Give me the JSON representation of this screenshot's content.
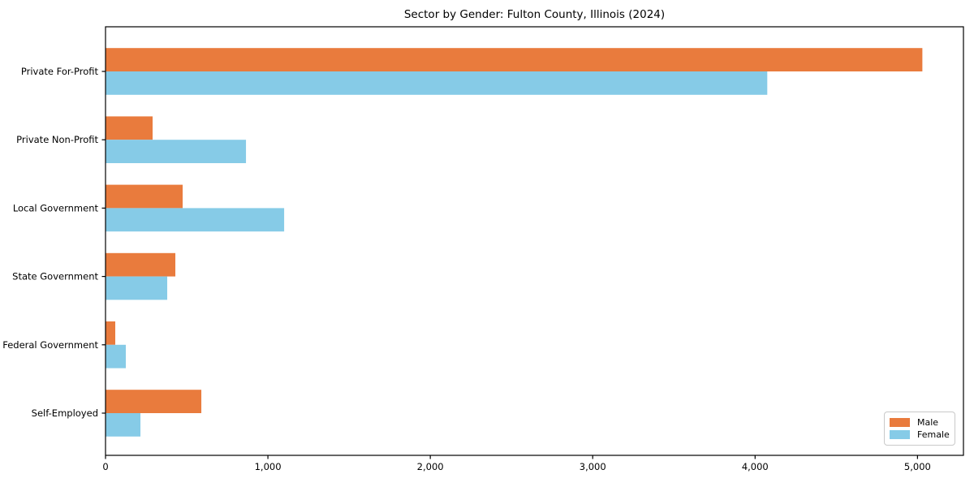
{
  "title": "Sector by Gender: Fulton County, Illinois (2024)",
  "colors": {
    "male": "#e97b3d",
    "female": "#86cbe7",
    "spine": "#000000",
    "background": "#ffffff",
    "legend_border": "#c9c9c9"
  },
  "legend": {
    "position": "lower right",
    "items": [
      {
        "label": "Male"
      },
      {
        "label": "Female"
      }
    ]
  },
  "chart_data": {
    "type": "bar",
    "orientation": "horizontal",
    "title": "Sector by Gender: Fulton County, Illinois (2024)",
    "categories": [
      "Private For-Profit",
      "Private Non-Profit",
      "Local Government",
      "State Government",
      "Federal Government",
      "Self-Employed"
    ],
    "series": [
      {
        "name": "Male",
        "color": "#e97b3d",
        "values": [
          5030,
          290,
          475,
          430,
          60,
          590
        ]
      },
      {
        "name": "Female",
        "color": "#86cbe7",
        "values": [
          4075,
          865,
          1100,
          380,
          125,
          215
        ]
      }
    ],
    "xlabel": "",
    "ylabel": "",
    "xlim": [
      0,
      5283
    ],
    "x_ticks": [
      0,
      1000,
      2000,
      3000,
      4000,
      5000
    ],
    "x_tick_labels": [
      "0",
      "1,000",
      "2,000",
      "3,000",
      "4,000",
      "5,000"
    ],
    "grid": false,
    "legend_position": "lower right"
  }
}
